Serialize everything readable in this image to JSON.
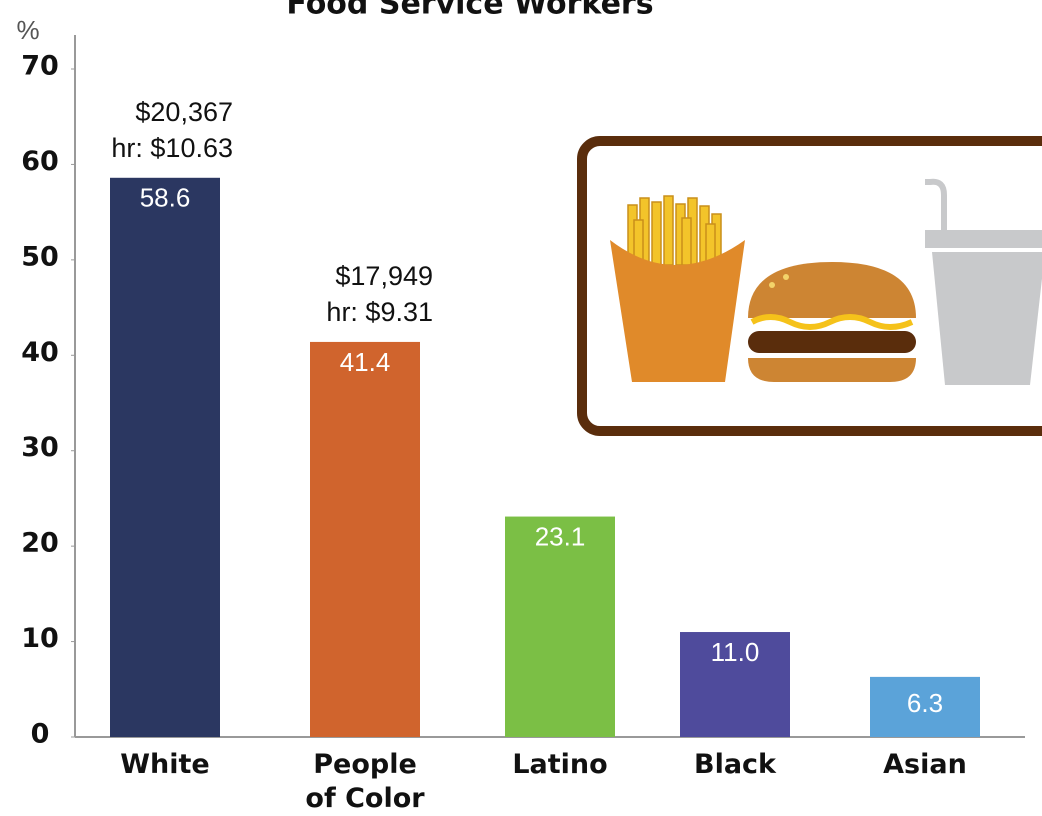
{
  "chart_data": {
    "type": "bar",
    "title": "Food Service Workers",
    "y_label": "%",
    "categories": [
      "White",
      "People of Color",
      "Latino",
      "Black",
      "Asian"
    ],
    "values": [
      58.6,
      41.4,
      23.1,
      11.0,
      6.3
    ],
    "value_labels": [
      "58.6",
      "41.4",
      "23.1",
      "11.0",
      "6.3"
    ],
    "colors": [
      "#2b3761",
      "#d0642d",
      "#7bbf45",
      "#4f4b9c",
      "#5ba3d9"
    ],
    "annotations": [
      [
        "$20,367",
        "hr: $10.63"
      ],
      [
        "$17,949",
        "hr: $9.31"
      ]
    ],
    "ylim": [
      0,
      70
    ],
    "yticks": [
      0,
      10,
      20,
      30,
      40,
      50,
      60,
      70
    ],
    "grid": false
  }
}
